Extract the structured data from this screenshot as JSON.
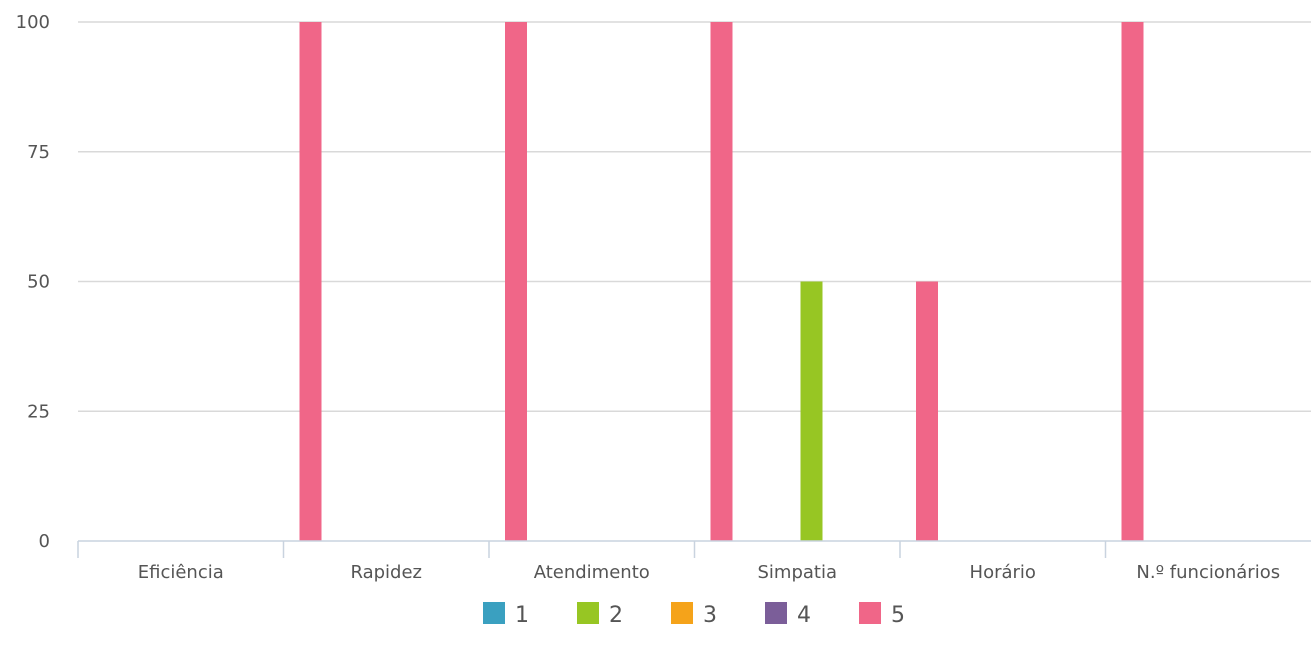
{
  "chart_data": {
    "type": "bar",
    "categories": [
      "Eficiência",
      "Rapidez",
      "Atendimento",
      "Simpatia",
      "Horário",
      "N.º funcionários"
    ],
    "series": [
      {
        "name": "1",
        "color": "#3aa0c0",
        "values": [
          0,
          0,
          0,
          0,
          0,
          0
        ]
      },
      {
        "name": "2",
        "color": "#97c623",
        "values": [
          0,
          0,
          0,
          50,
          0,
          0
        ]
      },
      {
        "name": "3",
        "color": "#f5a31a",
        "values": [
          0,
          0,
          0,
          0,
          0,
          0
        ]
      },
      {
        "name": "4",
        "color": "#7b5e99",
        "values": [
          0,
          0,
          0,
          0,
          0,
          0
        ]
      },
      {
        "name": "5",
        "color": "#f06688",
        "values": [
          100,
          100,
          100,
          50,
          100,
          100
        ]
      }
    ],
    "ylim": [
      0,
      100
    ],
    "yticks": [
      0,
      25,
      50,
      75,
      100
    ],
    "grid": true,
    "legend_position": "bottom-center",
    "title": "",
    "xlabel": "",
    "ylabel": ""
  }
}
